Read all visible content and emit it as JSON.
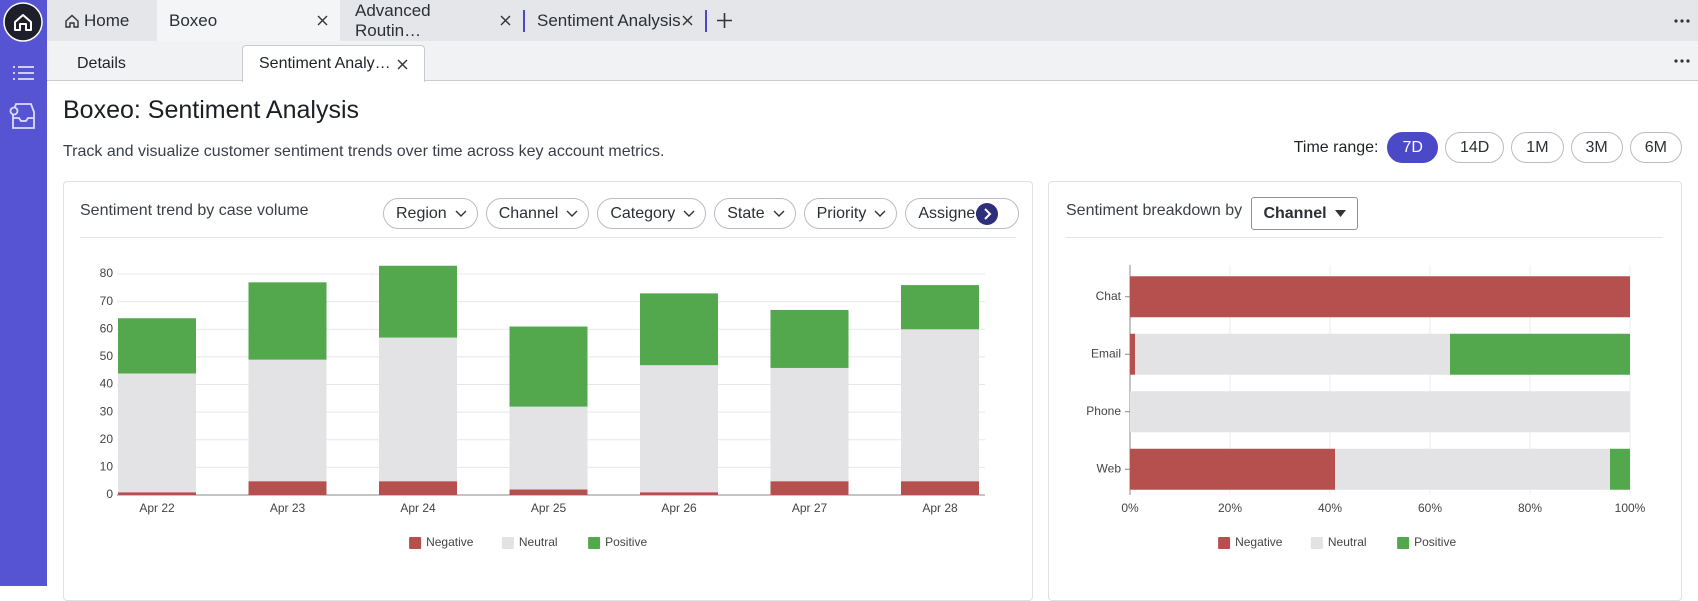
{
  "tabs": [
    "Home",
    "Boxeo",
    "Advanced Routin…",
    "Sentiment Analysis"
  ],
  "subtabs": [
    "Details",
    "Sentiment Analy…"
  ],
  "header": {
    "title": "Boxeo: Sentiment Analysis",
    "subtitle": "Track and visualize customer sentiment trends over time across key account metrics."
  },
  "time_range": {
    "label": "Time range:",
    "options": [
      "7D",
      "14D",
      "1M",
      "3M",
      "6M"
    ],
    "selected": "7D"
  },
  "filters": [
    "Region",
    "Channel",
    "Category",
    "State",
    "Priority",
    "Assigned t"
  ],
  "chart_data": [
    {
      "type": "bar",
      "stacked": true,
      "title": "Sentiment trend by case volume",
      "categories": [
        "Apr 22",
        "Apr 23",
        "Apr 24",
        "Apr 25",
        "Apr 26",
        "Apr 27",
        "Apr 28"
      ],
      "series": [
        {
          "name": "Negative",
          "color": "#b5504f",
          "values": [
            1,
            5,
            5,
            2,
            1,
            5,
            5
          ]
        },
        {
          "name": "Neutral",
          "color": "#e3e3e5",
          "values": [
            43,
            44,
            52,
            30,
            46,
            41,
            55
          ]
        },
        {
          "name": "Positive",
          "color": "#53a84e",
          "values": [
            20,
            28,
            26,
            29,
            26,
            21,
            16
          ]
        }
      ],
      "ylim": [
        0,
        84
      ],
      "yticks": [
        0,
        10,
        20,
        30,
        40,
        50,
        60,
        70,
        80
      ],
      "grid": true
    },
    {
      "type": "barh",
      "stacked": true,
      "title": "Sentiment breakdown by",
      "dropdown": "Channel",
      "categories": [
        "Chat",
        "Email",
        "Phone",
        "Web"
      ],
      "series": [
        {
          "name": "Negative",
          "color": "#b5504f",
          "values": [
            100,
            1,
            0,
            41
          ]
        },
        {
          "name": "Neutral",
          "color": "#e3e3e5",
          "values": [
            0,
            63,
            100,
            55
          ]
        },
        {
          "name": "Positive",
          "color": "#53a84e",
          "values": [
            0,
            36,
            0,
            4
          ]
        }
      ],
      "xlim": [
        0,
        100
      ],
      "xticks": [
        {
          "value": 0,
          "label": "0%"
        },
        {
          "value": 20,
          "label": "20%"
        },
        {
          "value": 40,
          "label": "40%"
        },
        {
          "value": 60,
          "label": "60%"
        },
        {
          "value": 80,
          "label": "80%"
        },
        {
          "value": 100,
          "label": "100%"
        }
      ],
      "grid": true
    }
  ]
}
